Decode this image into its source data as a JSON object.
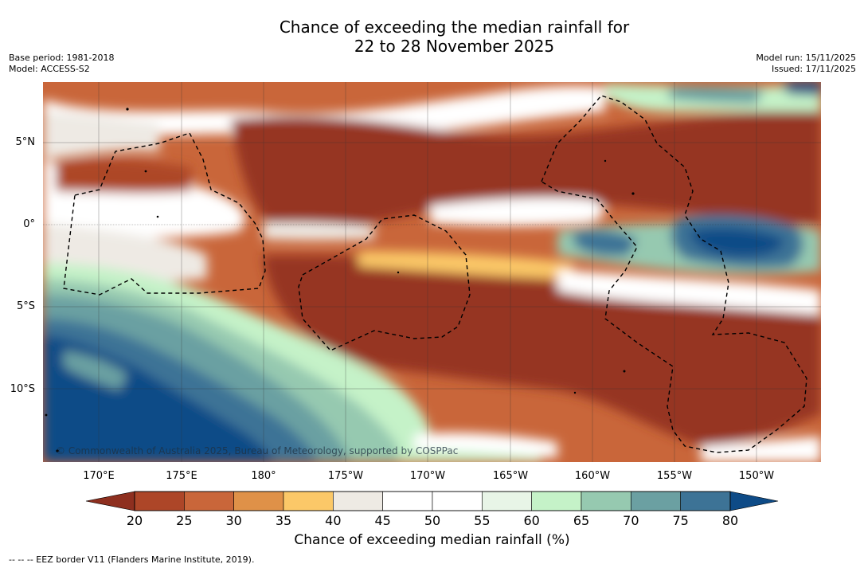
{
  "title": {
    "line1": "Chance of exceeding the median rainfall for",
    "line2": "22 to 28 November 2025"
  },
  "meta": {
    "base_period": "Base period: 1981-2018",
    "model": "Model: ACCESS-S2",
    "model_run": "Model run: 15/11/2025",
    "issued": "Issued: 17/11/2025"
  },
  "lat_labels": [
    "5°N",
    "0°",
    "5°S",
    "10°S"
  ],
  "lon_labels": [
    "170°E",
    "175°E",
    "180°",
    "175°W",
    "170°W",
    "165°W",
    "160°W",
    "155°W",
    "150°W"
  ],
  "copyright": "© Commonwealth of Australia 2025, Bureau of Meteorology, supported by COSPPac",
  "colorbar": {
    "title": "Chance of exceeding median rainfall (%)",
    "ticks": [
      "20",
      "25",
      "30",
      "35",
      "40",
      "45",
      "50",
      "55",
      "60",
      "65",
      "70",
      "75",
      "80"
    ],
    "low_color": "#8e2f1f",
    "high_color": "#0e4b87",
    "colors": [
      "#ad4628",
      "#c9663a",
      "#df9148",
      "#fbc868",
      "#eeeae4",
      "#ffffff",
      "#ffffff",
      "#e8f5e7",
      "#c5f2c8",
      "#96c9b0",
      "#6ba0a2",
      "#3d7396"
    ]
  },
  "footnote": "-- -- -- EEZ border V11 (Flanders Marine Institute, 2019)."
}
